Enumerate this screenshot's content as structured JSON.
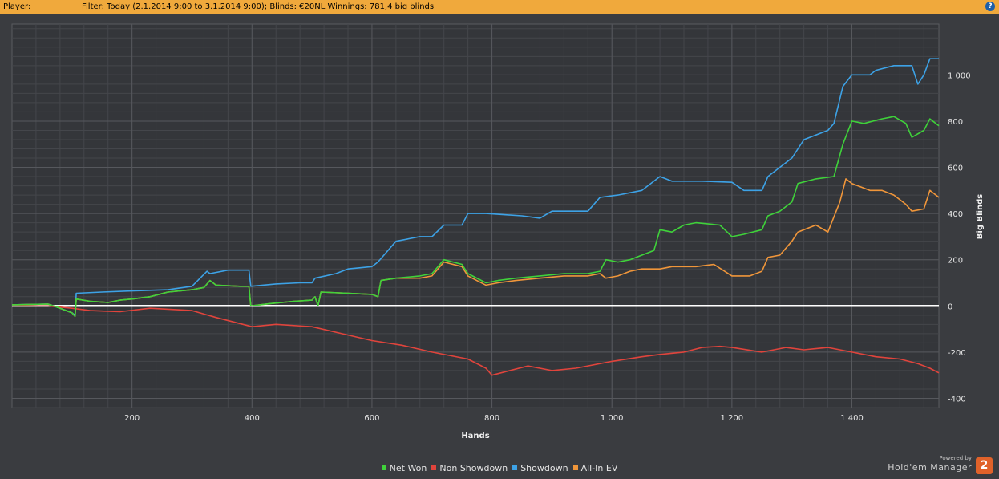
{
  "header": {
    "player_label": "Player:",
    "filter_text": "Filter: Today (2.1.2014 9:00 to 3.1.2014 9:00); Blinds: €20NL  Winnings: 781,4 big blinds",
    "help_icon": "help-icon"
  },
  "brand": {
    "powered_by": "Powered by",
    "name": "Hold'em Manager",
    "logo_text": "2"
  },
  "chart_data": {
    "type": "line",
    "title": "",
    "xlabel": "Hands",
    "ylabel": "Big Blinds",
    "xlim": [
      0,
      1545
    ],
    "ylim": [
      -440,
      1220
    ],
    "x_ticks": [
      200,
      400,
      600,
      800,
      1000,
      1200,
      1400
    ],
    "x_tick_labels": [
      "200",
      "400",
      "600",
      "800",
      "1 000",
      "1 200",
      "1 400"
    ],
    "y_ticks": [
      -400,
      -200,
      0,
      200,
      400,
      600,
      800,
      1000
    ],
    "y_tick_labels": [
      "-400",
      "-200",
      "0",
      "200",
      "400",
      "600",
      "800",
      "1 000"
    ],
    "grid": true,
    "legend_position": "bottom-center",
    "series": [
      {
        "name": "Net Won",
        "color": "#3fd23a",
        "points": [
          [
            0,
            5
          ],
          [
            60,
            8
          ],
          [
            75,
            -5
          ],
          [
            100,
            -30
          ],
          [
            105,
            -45
          ],
          [
            107,
            30
          ],
          [
            130,
            20
          ],
          [
            160,
            15
          ],
          [
            180,
            25
          ],
          [
            200,
            30
          ],
          [
            230,
            40
          ],
          [
            260,
            60
          ],
          [
            300,
            70
          ],
          [
            320,
            80
          ],
          [
            330,
            110
          ],
          [
            340,
            90
          ],
          [
            380,
            85
          ],
          [
            395,
            85
          ],
          [
            398,
            0
          ],
          [
            430,
            10
          ],
          [
            470,
            20
          ],
          [
            500,
            25
          ],
          [
            505,
            40
          ],
          [
            510,
            0
          ],
          [
            515,
            60
          ],
          [
            560,
            55
          ],
          [
            600,
            50
          ],
          [
            610,
            40
          ],
          [
            615,
            110
          ],
          [
            640,
            120
          ],
          [
            680,
            130
          ],
          [
            700,
            140
          ],
          [
            720,
            200
          ],
          [
            750,
            180
          ],
          [
            760,
            140
          ],
          [
            790,
            100
          ],
          [
            810,
            110
          ],
          [
            840,
            120
          ],
          [
            880,
            130
          ],
          [
            920,
            140
          ],
          [
            960,
            140
          ],
          [
            980,
            150
          ],
          [
            990,
            200
          ],
          [
            1010,
            190
          ],
          [
            1030,
            200
          ],
          [
            1050,
            220
          ],
          [
            1070,
            240
          ],
          [
            1080,
            330
          ],
          [
            1100,
            320
          ],
          [
            1120,
            350
          ],
          [
            1140,
            360
          ],
          [
            1180,
            350
          ],
          [
            1200,
            300
          ],
          [
            1220,
            310
          ],
          [
            1250,
            330
          ],
          [
            1260,
            390
          ],
          [
            1280,
            410
          ],
          [
            1300,
            450
          ],
          [
            1310,
            530
          ],
          [
            1340,
            550
          ],
          [
            1370,
            560
          ],
          [
            1385,
            700
          ],
          [
            1400,
            800
          ],
          [
            1420,
            790
          ],
          [
            1450,
            810
          ],
          [
            1470,
            820
          ],
          [
            1490,
            790
          ],
          [
            1500,
            730
          ],
          [
            1520,
            760
          ],
          [
            1530,
            810
          ],
          [
            1545,
            780
          ]
        ]
      },
      {
        "name": "Non Showdown",
        "color": "#e0443c",
        "points": [
          [
            0,
            0
          ],
          [
            60,
            0
          ],
          [
            100,
            -10
          ],
          [
            130,
            -20
          ],
          [
            180,
            -25
          ],
          [
            230,
            -10
          ],
          [
            300,
            -20
          ],
          [
            340,
            -50
          ],
          [
            400,
            -90
          ],
          [
            440,
            -80
          ],
          [
            500,
            -90
          ],
          [
            550,
            -120
          ],
          [
            600,
            -150
          ],
          [
            650,
            -170
          ],
          [
            700,
            -200
          ],
          [
            760,
            -230
          ],
          [
            790,
            -270
          ],
          [
            800,
            -300
          ],
          [
            830,
            -280
          ],
          [
            860,
            -260
          ],
          [
            900,
            -280
          ],
          [
            940,
            -270
          ],
          [
            1000,
            -240
          ],
          [
            1050,
            -220
          ],
          [
            1080,
            -210
          ],
          [
            1120,
            -200
          ],
          [
            1150,
            -180
          ],
          [
            1180,
            -175
          ],
          [
            1200,
            -180
          ],
          [
            1250,
            -200
          ],
          [
            1290,
            -180
          ],
          [
            1320,
            -190
          ],
          [
            1360,
            -180
          ],
          [
            1400,
            -200
          ],
          [
            1440,
            -220
          ],
          [
            1480,
            -230
          ],
          [
            1510,
            -250
          ],
          [
            1530,
            -270
          ],
          [
            1545,
            -290
          ]
        ]
      },
      {
        "name": "Showdown",
        "color": "#3da2e6",
        "points": [
          [
            0,
            5
          ],
          [
            60,
            8
          ],
          [
            75,
            -5
          ],
          [
            100,
            -30
          ],
          [
            105,
            -40
          ],
          [
            107,
            55
          ],
          [
            150,
            60
          ],
          [
            200,
            65
          ],
          [
            260,
            70
          ],
          [
            300,
            85
          ],
          [
            325,
            150
          ],
          [
            330,
            140
          ],
          [
            360,
            155
          ],
          [
            395,
            155
          ],
          [
            398,
            85
          ],
          [
            440,
            95
          ],
          [
            480,
            100
          ],
          [
            500,
            100
          ],
          [
            505,
            120
          ],
          [
            540,
            140
          ],
          [
            560,
            160
          ],
          [
            600,
            170
          ],
          [
            610,
            190
          ],
          [
            640,
            280
          ],
          [
            680,
            300
          ],
          [
            700,
            300
          ],
          [
            720,
            350
          ],
          [
            750,
            350
          ],
          [
            760,
            400
          ],
          [
            790,
            400
          ],
          [
            850,
            390
          ],
          [
            880,
            380
          ],
          [
            900,
            410
          ],
          [
            960,
            410
          ],
          [
            980,
            470
          ],
          [
            1010,
            480
          ],
          [
            1050,
            500
          ],
          [
            1080,
            560
          ],
          [
            1100,
            540
          ],
          [
            1150,
            540
          ],
          [
            1200,
            535
          ],
          [
            1220,
            500
          ],
          [
            1250,
            500
          ],
          [
            1260,
            560
          ],
          [
            1280,
            600
          ],
          [
            1300,
            640
          ],
          [
            1320,
            720
          ],
          [
            1360,
            760
          ],
          [
            1370,
            790
          ],
          [
            1385,
            950
          ],
          [
            1400,
            1000
          ],
          [
            1430,
            1000
          ],
          [
            1440,
            1020
          ],
          [
            1470,
            1040
          ],
          [
            1500,
            1040
          ],
          [
            1510,
            960
          ],
          [
            1520,
            1000
          ],
          [
            1530,
            1070
          ],
          [
            1545,
            1070
          ]
        ]
      },
      {
        "name": "All-In EV",
        "color": "#f0963a",
        "points": [
          [
            0,
            5
          ],
          [
            60,
            8
          ],
          [
            75,
            -5
          ],
          [
            100,
            -30
          ],
          [
            105,
            -45
          ],
          [
            107,
            30
          ],
          [
            130,
            20
          ],
          [
            160,
            15
          ],
          [
            180,
            25
          ],
          [
            200,
            30
          ],
          [
            230,
            40
          ],
          [
            260,
            60
          ],
          [
            300,
            70
          ],
          [
            320,
            80
          ],
          [
            330,
            110
          ],
          [
            340,
            90
          ],
          [
            380,
            85
          ],
          [
            395,
            85
          ],
          [
            398,
            0
          ],
          [
            430,
            10
          ],
          [
            470,
            20
          ],
          [
            500,
            25
          ],
          [
            505,
            40
          ],
          [
            510,
            0
          ],
          [
            515,
            60
          ],
          [
            560,
            55
          ],
          [
            600,
            50
          ],
          [
            610,
            40
          ],
          [
            615,
            110
          ],
          [
            640,
            120
          ],
          [
            680,
            120
          ],
          [
            700,
            130
          ],
          [
            720,
            190
          ],
          [
            750,
            170
          ],
          [
            760,
            130
          ],
          [
            790,
            90
          ],
          [
            810,
            100
          ],
          [
            840,
            110
          ],
          [
            880,
            120
          ],
          [
            920,
            130
          ],
          [
            960,
            130
          ],
          [
            980,
            140
          ],
          [
            990,
            120
          ],
          [
            1010,
            130
          ],
          [
            1030,
            150
          ],
          [
            1050,
            160
          ],
          [
            1080,
            160
          ],
          [
            1100,
            170
          ],
          [
            1140,
            170
          ],
          [
            1170,
            180
          ],
          [
            1200,
            130
          ],
          [
            1230,
            130
          ],
          [
            1250,
            150
          ],
          [
            1260,
            210
          ],
          [
            1280,
            220
          ],
          [
            1300,
            280
          ],
          [
            1310,
            320
          ],
          [
            1340,
            350
          ],
          [
            1360,
            320
          ],
          [
            1380,
            450
          ],
          [
            1390,
            550
          ],
          [
            1400,
            530
          ],
          [
            1430,
            500
          ],
          [
            1450,
            500
          ],
          [
            1470,
            480
          ],
          [
            1490,
            440
          ],
          [
            1500,
            410
          ],
          [
            1520,
            420
          ],
          [
            1530,
            500
          ],
          [
            1545,
            470
          ]
        ]
      }
    ]
  }
}
